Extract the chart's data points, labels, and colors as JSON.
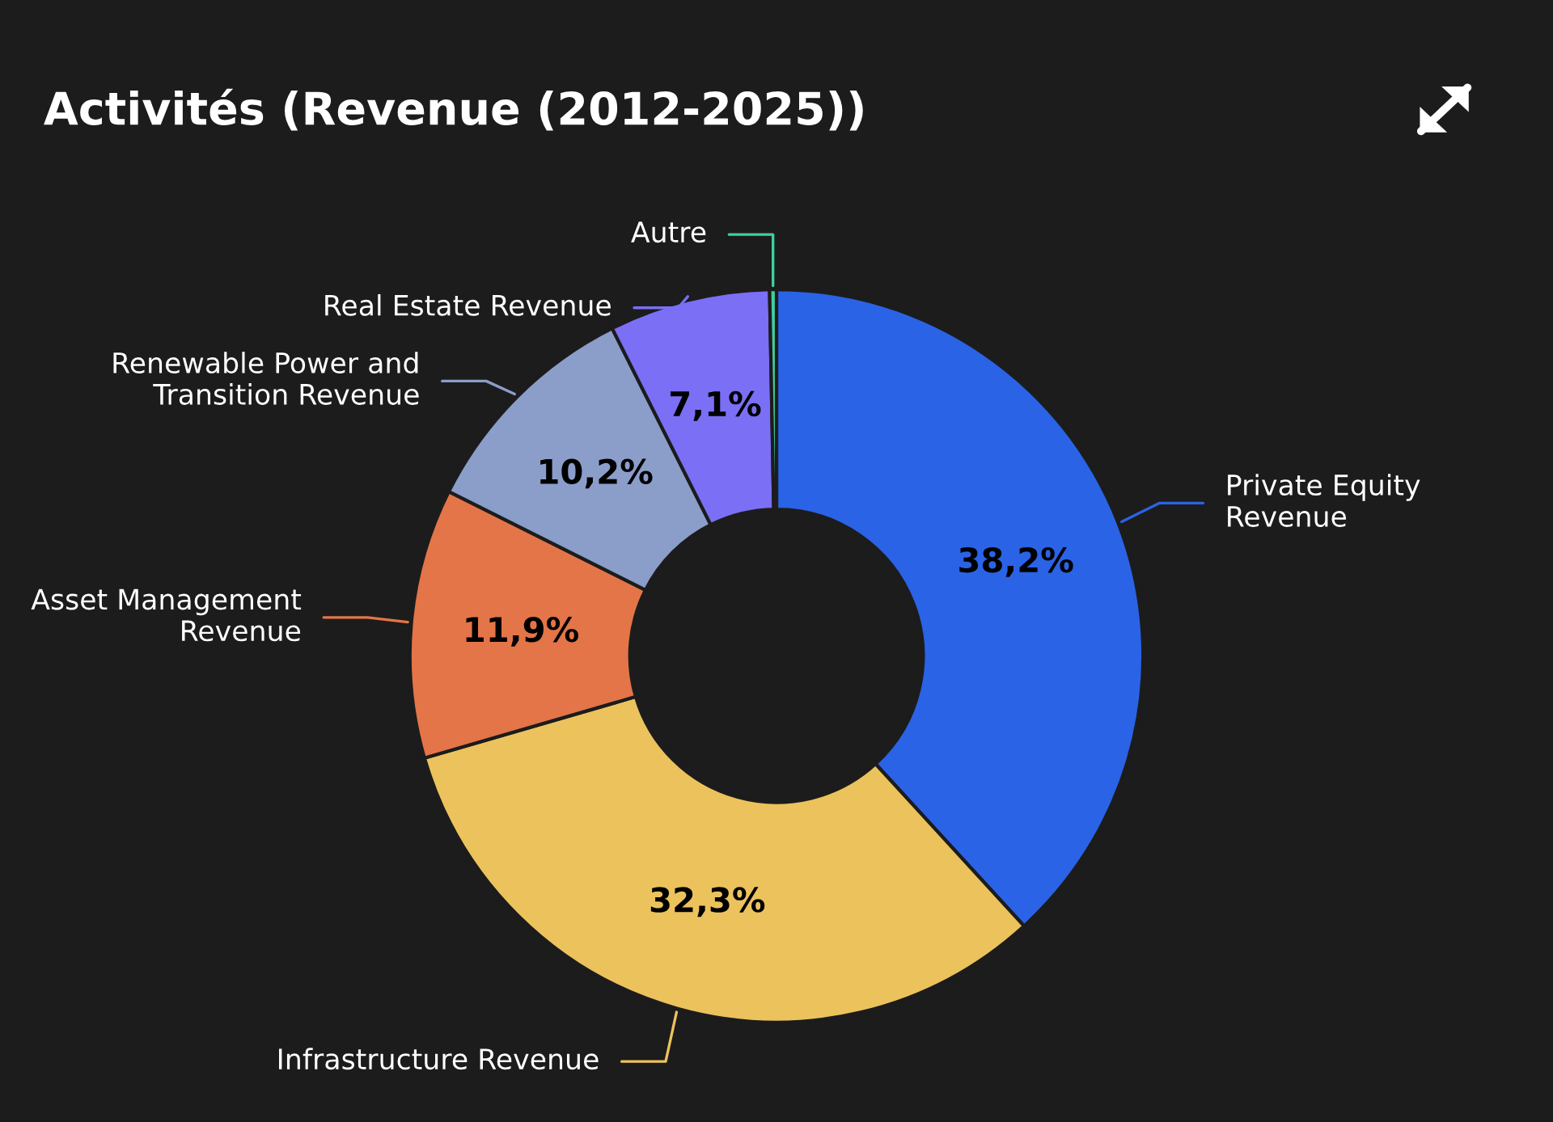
{
  "chart_data": {
    "type": "donut",
    "title": "Activités (Revenue (2012-2025))",
    "categories": [
      "Private Equity\nRevenue",
      "Infrastructure Revenue",
      "Asset Management\nRevenue",
      "Renewable Power and\nTransition Revenue",
      "Real Estate Revenue",
      "Autre"
    ],
    "values": [
      38.2,
      32.3,
      11.9,
      10.2,
      7.1,
      0.3
    ],
    "value_labels": [
      "38,2%",
      "32,3%",
      "11,9%",
      "10,2%",
      "7,1%",
      null
    ],
    "colors": [
      "#2a63e6",
      "#ecc25c",
      "#e37548",
      "#8b9dc9",
      "#7a6ff5",
      "#3fcfa0"
    ],
    "legend": false
  }
}
